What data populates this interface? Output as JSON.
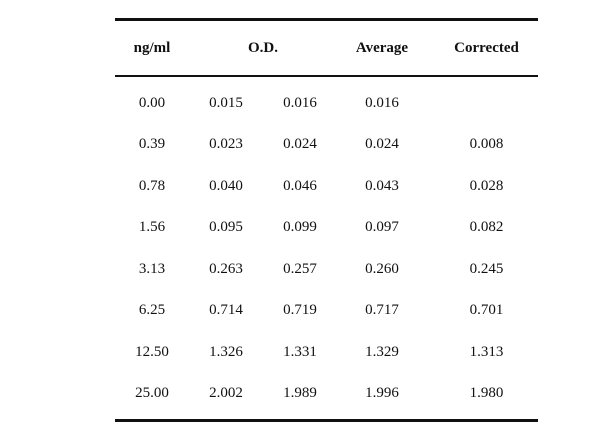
{
  "table": {
    "headers": {
      "concentration": "ng/ml",
      "od": "O.D.",
      "average": "Average",
      "corrected": "Corrected"
    },
    "rows": [
      {
        "conc": "0.00",
        "od1": "0.015",
        "od2": "0.016",
        "avg": "0.016",
        "corr": ""
      },
      {
        "conc": "0.39",
        "od1": "0.023",
        "od2": "0.024",
        "avg": "0.024",
        "corr": "0.008"
      },
      {
        "conc": "0.78",
        "od1": "0.040",
        "od2": "0.046",
        "avg": "0.043",
        "corr": "0.028"
      },
      {
        "conc": "1.56",
        "od1": "0.095",
        "od2": "0.099",
        "avg": "0.097",
        "corr": "0.082"
      },
      {
        "conc": "3.13",
        "od1": "0.263",
        "od2": "0.257",
        "avg": "0.260",
        "corr": "0.245"
      },
      {
        "conc": "6.25",
        "od1": "0.714",
        "od2": "0.719",
        "avg": "0.717",
        "corr": "0.701"
      },
      {
        "conc": "12.50",
        "od1": "1.326",
        "od2": "1.331",
        "avg": "1.329",
        "corr": "1.313"
      },
      {
        "conc": "25.00",
        "od1": "2.002",
        "od2": "1.989",
        "avg": "1.996",
        "corr": "1.980"
      }
    ]
  }
}
